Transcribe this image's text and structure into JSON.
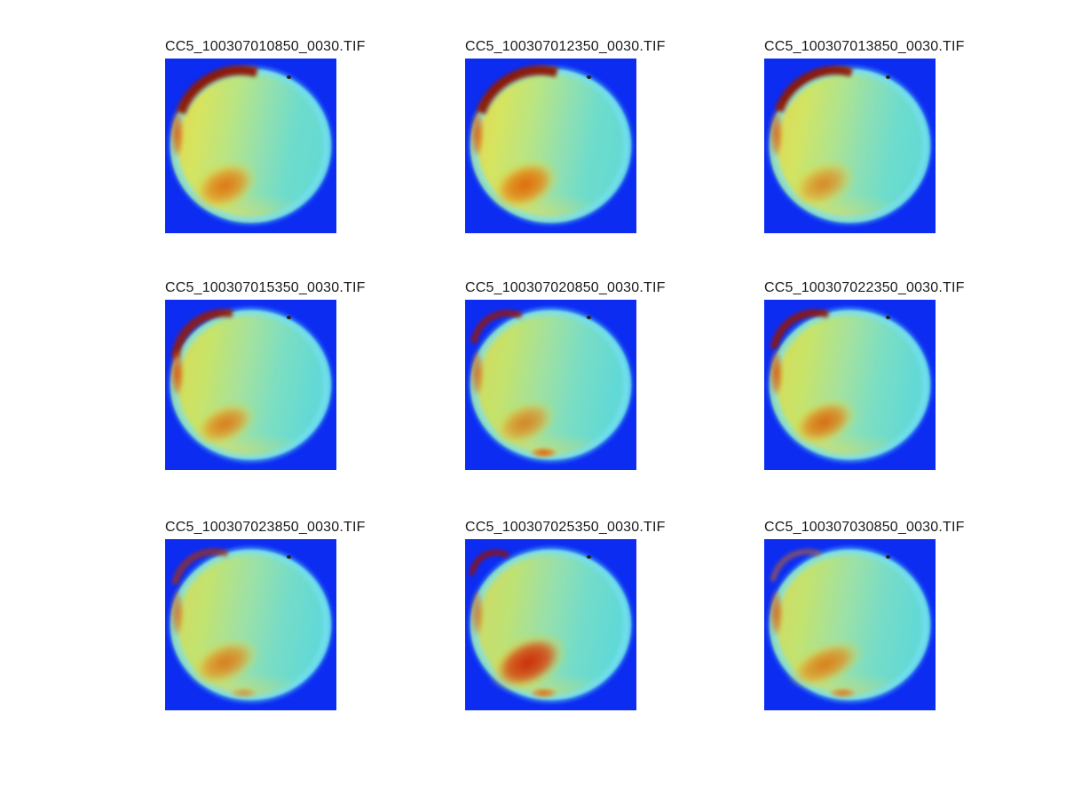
{
  "figure": {
    "kind": "image-montage",
    "rows": 3,
    "columns": 3,
    "background": "#ffffff",
    "tile_background": "#0c2cf2",
    "colormap": "jet",
    "title_color": "#1a1a1a"
  },
  "chart_data": [
    {
      "type": "heatmap",
      "title": "CC5_100307010850_0030.TIF",
      "colormap": "jet",
      "notes": "circular all-sky thermal image; strong dark-red arc upper-left, orange blob lower-left, cyan right half, dark dot upper-right"
    },
    {
      "type": "heatmap",
      "title": "CC5_100307012350_0030.TIF",
      "colormap": "jet",
      "notes": "strong dark-red arc upper-left, orange blob lower-left, dark dot upper-right"
    },
    {
      "type": "heatmap",
      "title": "CC5_100307013850_0030.TIF",
      "colormap": "jet",
      "notes": "strong dark-red arc upper-left, lighter orange blob lower-left, dark dot upper-right"
    },
    {
      "type": "heatmap",
      "title": "CC5_100307015350_0030.TIF",
      "colormap": "jet",
      "notes": "shorter red arc upper-left, orange streaks on left rim, orange blob lower-left"
    },
    {
      "type": "heatmap",
      "title": "CC5_100307020850_0030.TIF",
      "colormap": "jet",
      "notes": "small red streak top-left, orange blob lower-left, small orange spot bottom center"
    },
    {
      "type": "heatmap",
      "title": "CC5_100307022350_0030.TIF",
      "colormap": "jet",
      "notes": "medium red arc top-left, orange rim streaks, orange blob lower-left"
    },
    {
      "type": "heatmap",
      "title": "CC5_100307023850_0030.TIF",
      "colormap": "jet",
      "notes": "faint red arc, greener disk, orange blob lower-left, bottom warm spot"
    },
    {
      "type": "heatmap",
      "title": "CC5_100307025350_0030.TIF",
      "colormap": "jet",
      "notes": "short red streak top-left, large dark-red blob lower-left, cyan disk"
    },
    {
      "type": "heatmap",
      "title": "CC5_100307030850_0030.TIF",
      "colormap": "jet",
      "notes": "faint orange arc, elongated orange blob lower-left, dark dot upper-right"
    }
  ],
  "subplots": [
    {
      "title": "CC5_100307010850_0030.TIF",
      "style": {
        "--bg": "#0c2cf2",
        "--base": "radial-gradient(90% 30% at 42% 98%, rgba(250,222,70,.5), rgba(250,222,70,0) 60%), linear-gradient(100deg,#e8d44e 0%,#d6e45f 20%,#b8e584 38%,#93e0ae 55%,#6edccb 72%,#5ed8d8 100%)",
        "--arc-c": "#8e1500",
        "--arc-t": "11px",
        "--arc-w": "64%",
        "--arc-h": "58%",
        "--arc-rot": "-28deg",
        "--arc-o": "0.95",
        "--streak-o": "0.9",
        "--blob-c1": "#e26708",
        "--blob-c2": "rgba(235,140,20,.8)",
        "--blob-x": "12%",
        "--blob-y": "58%",
        "--blob-w": "46%",
        "--blob-h": "30%",
        "--blob-rot": "-24deg",
        "--blob-o": "0.9",
        "--spot-o": "0"
      }
    },
    {
      "title": "CC5_100307012350_0030.TIF",
      "style": {
        "--bg": "#0c2cf2",
        "--base": "radial-gradient(90% 30% at 42% 98%, rgba(250,222,70,.5), rgba(250,222,70,0) 60%), linear-gradient(100deg,#e8d44e 0%,#d6e45f 20%,#b8e584 38%,#93e0ae 55%,#6edccb 72%,#5ed8d8 100%)",
        "--arc-c": "#8e1500",
        "--arc-t": "11px",
        "--arc-w": "64%",
        "--arc-h": "58%",
        "--arc-rot": "-28deg",
        "--arc-o": "0.95",
        "--streak-o": "0.9",
        "--blob-c1": "#e06206",
        "--blob-c2": "rgba(233,135,18,.85)",
        "--blob-x": "11%",
        "--blob-y": "57%",
        "--blob-w": "48%",
        "--blob-h": "31%",
        "--blob-rot": "-24deg",
        "--blob-o": "0.95",
        "--spot-o": "0"
      }
    },
    {
      "title": "CC5_100307013850_0030.TIF",
      "style": {
        "--bg": "#0c2cf2",
        "--base": "radial-gradient(90% 30% at 42% 98%, rgba(250,222,70,.45), rgba(250,222,70,0) 60%), linear-gradient(100deg,#e5d450 0%,#d2e462 22%,#b1e48c 40%,#8cdfb4 57%,#6cdccd 74%,#5ed8d8 100%)",
        "--arc-c": "#901700",
        "--arc-t": "10px",
        "--arc-w": "62%",
        "--arc-h": "58%",
        "--arc-rot": "-28deg",
        "--arc-o": "0.95",
        "--streak-o": "0.85",
        "--blob-c1": "#e26e0c",
        "--blob-c2": "rgba(236,146,26,.75)",
        "--blob-x": "12%",
        "--blob-y": "58%",
        "--blob-w": "45%",
        "--blob-h": "28%",
        "--blob-rot": "-24deg",
        "--blob-o": "0.8",
        "--spot-o": "0"
      }
    },
    {
      "title": "CC5_100307015350_0030.TIF",
      "style": {
        "--bg": "#0c2cf2",
        "--base": "radial-gradient(90% 28% at 42% 98%, rgba(248,220,68,.45), rgba(248,220,68,0) 60%), linear-gradient(100deg,#ddd853 0%,#c8e468 24%,#a4e29e 45%,#7cdec2 64%,#62d9d5 85%,#66dbdc 100%)",
        "--arc-c": "#991a00",
        "--arc-t": "9px",
        "--arc-w": "56%",
        "--arc-h": "60%",
        "--arc-rot": "-38deg",
        "--arc-o": "0.9",
        "--streak-o": "1",
        "--blob-c1": "#e06808",
        "--blob-c2": "rgba(233,140,22,.8)",
        "--blob-x": "13%",
        "--blob-y": "60%",
        "--blob-w": "44%",
        "--blob-h": "26%",
        "--blob-rot": "-24deg",
        "--blob-o": "0.85",
        "--spot-o": "0"
      }
    },
    {
      "title": "CC5_100307020850_0030.TIF",
      "style": {
        "--bg": "#0c2cf2",
        "--base": "radial-gradient(90% 28% at 44% 98%, rgba(248,220,68,.5), rgba(248,220,68,0) 60%), linear-gradient(100deg,#d9d756 0%,#c4e36c 24%,#9fe1a2 45%,#79ddc4 64%,#61d9d6 85%,#66dbdc 100%)",
        "--arc-c": "#9c1600",
        "--arc-t": "7px",
        "--arc-w": "44%",
        "--arc-h": "56%",
        "--arc-rot": "-30deg",
        "--arc-o": "0.85",
        "--streak-o": "0.8",
        "--blob-c1": "#e06a0a",
        "--blob-c2": "rgba(233,140,22,.78)",
        "--blob-x": "13%",
        "--blob-y": "59%",
        "--blob-w": "44%",
        "--blob-h": "27%",
        "--blob-rot": "-24deg",
        "--blob-o": "0.8",
        "--spot-o": "0.9"
      }
    },
    {
      "title": "CC5_100307022350_0030.TIF",
      "style": {
        "--bg": "#0c2cf2",
        "--base": "radial-gradient(90% 28% at 42% 98%, rgba(248,220,68,.45), rgba(248,220,68,0) 60%), linear-gradient(100deg,#ddd853 0%,#c8e468 24%,#a4e29e 45%,#7cdec2 64%,#62d9d5 85%,#66dbdc 100%)",
        "--arc-c": "#951600",
        "--arc-t": "8px",
        "--arc-w": "50%",
        "--arc-h": "58%",
        "--arc-rot": "-32deg",
        "--arc-o": "0.9",
        "--streak-o": "0.95",
        "--blob-c1": "#db5c06",
        "--blob-c2": "rgba(230,130,18,.82)",
        "--blob-x": "12%",
        "--blob-y": "58%",
        "--blob-w": "46%",
        "--blob-h": "28%",
        "--blob-rot": "-24deg",
        "--blob-o": "0.9",
        "--spot-o": "0"
      }
    },
    {
      "title": "CC5_100307023850_0030.TIF",
      "style": {
        "--bg": "#0c2cf2",
        "--base": "radial-gradient(90% 28% at 42% 98%, rgba(248,220,68,.5), rgba(248,220,68,0) 60%), linear-gradient(100deg,#d8d95a 0%,#c2e370 24%,#9de1a6 46%,#77dcc6 66%,#62d9d6 86%,#66dbdc 100%)",
        "--arc-c": "#b03000",
        "--arc-t": "7px",
        "--arc-w": "48%",
        "--arc-h": "56%",
        "--arc-rot": "-30deg",
        "--arc-o": "0.75",
        "--streak-o": "0.75",
        "--blob-c1": "#e06808",
        "--blob-c2": "rgba(233,140,22,.8)",
        "--blob-x": "11%",
        "--blob-y": "58%",
        "--blob-w": "48%",
        "--blob-h": "28%",
        "--blob-rot": "-24deg",
        "--blob-o": "0.85",
        "--spot-o": "0.5"
      }
    },
    {
      "title": "CC5_100307025350_0030.TIF",
      "style": {
        "--bg": "#0c2cf2",
        "--base": "radial-gradient(90% 28% at 44% 98%, rgba(248,220,68,.45), rgba(248,220,68,0) 60%), linear-gradient(100deg,#d5d85e 0%,#bee274 26%,#98e0ab 47%,#74dcc8 66%,#60d9d7 86%,#66dbdc 100%)",
        "--arc-c": "#990f00",
        "--arc-t": "6px",
        "--arc-w": "34%",
        "--arc-h": "52%",
        "--arc-rot": "-28deg",
        "--arc-o": "0.9",
        "--streak-o": "0.7",
        "--blob-c1": "#cc2200",
        "--blob-c2": "rgba(220,70,10,.85)",
        "--blob-x": "9%",
        "--blob-y": "55%",
        "--blob-w": "56%",
        "--blob-h": "34%",
        "--blob-rot": "-27deg",
        "--blob-o": "0.95",
        "--spot-o": "0.8"
      }
    },
    {
      "title": "CC5_100307030850_0030.TIF",
      "style": {
        "--bg": "#0c2cf2",
        "--base": "radial-gradient(90% 28% at 44% 98%, rgba(248,220,68,.45), rgba(248,220,68,0) 60%), linear-gradient(100deg,#d8d95a 0%,#c2e370 24%,#9de1a6 46%,#77dcc6 66%,#62d9d6 86%,#66dbdc 100%)",
        "--arc-c": "#d06a10",
        "--arc-t": "6px",
        "--arc-w": "44%",
        "--arc-h": "54%",
        "--arc-rot": "-30deg",
        "--arc-o": "0.6",
        "--streak-o": "0.85",
        "--blob-c1": "#e07008",
        "--blob-c2": "rgba(233,140,22,.8)",
        "--blob-x": "9%",
        "--blob-y": "60%",
        "--blob-w": "54%",
        "--blob-h": "26%",
        "--blob-rot": "-24deg",
        "--blob-o": "0.88",
        "--spot-o": "0.7"
      }
    }
  ]
}
